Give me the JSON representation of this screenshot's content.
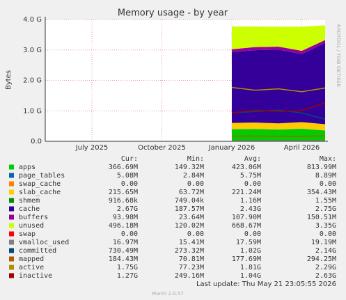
{
  "chart_data": {
    "type": "area",
    "title": "Memory usage - by year",
    "y_label": "Bytes",
    "watermark": "RRDTOOL / TOBI OETIKER",
    "footer": "Last update: Thu May 21 23:05:55 2026",
    "version": "Munin 2.0.57",
    "stat_headers": [
      "Cur:",
      "Min:",
      "Avg:",
      "Max:"
    ],
    "grid": true,
    "x": [
      "2026-01",
      "2026-02",
      "2026-03",
      "2026-04",
      "2026-05"
    ],
    "xlim": [
      "2025-05",
      "2026-05"
    ],
    "xticks": [
      {
        "value": "2025-07",
        "label": "July 2025"
      },
      {
        "value": "2025-10",
        "label": "October 2025"
      },
      {
        "value": "2026-01",
        "label": "January 2026"
      },
      {
        "value": "2026-04",
        "label": "April 2026"
      }
    ],
    "ylim": [
      0,
      4294967296
    ],
    "yticks": [
      {
        "value": 0,
        "label": "0.0"
      },
      {
        "value": 1073741824,
        "label": "1.0 G"
      },
      {
        "value": 2147483648,
        "label": "2.0 G"
      },
      {
        "value": 3221225472,
        "label": "3.0 G"
      },
      {
        "value": 4294967296,
        "label": "4.0 G"
      }
    ],
    "series": [
      {
        "name": "apps",
        "color": "#00cc00",
        "stacked": true,
        "values": [
          420000000,
          430000000,
          410000000,
          440000000,
          380000000
        ],
        "stats": [
          "366.69M",
          "149.32M",
          "423.06M",
          "813.99M"
        ]
      },
      {
        "name": "page_tables",
        "color": "#0066b3",
        "stacked": true,
        "values": [
          6000000,
          6000000,
          5500000,
          6000000,
          5000000
        ],
        "stats": [
          "5.08M",
          "2.84M",
          "5.75M",
          "8.89M"
        ]
      },
      {
        "name": "swap_cache",
        "color": "#ff8000",
        "stacked": true,
        "values": [
          0,
          0,
          0,
          0,
          0
        ],
        "stats": [
          "0.00",
          "0.00",
          "0.00",
          "0.00"
        ]
      },
      {
        "name": "slab_cache",
        "color": "#ffcc00",
        "stacked": true,
        "values": [
          220000000,
          225000000,
          215000000,
          230000000,
          216000000
        ],
        "stats": [
          "215.65M",
          "63.72M",
          "221.24M",
          "354.43M"
        ]
      },
      {
        "name": "shmem",
        "color": "#008f00",
        "stacked": true,
        "values": [
          1200000,
          1150000,
          1100000,
          1200000,
          938000
        ],
        "stats": [
          "916.68k",
          "749.04k",
          "1.16M",
          "1.55M"
        ]
      },
      {
        "name": "cache",
        "color": "#330099",
        "stacked": true,
        "values": [
          2500000000,
          2550000000,
          2600000000,
          2400000000,
          2870000000
        ],
        "stats": [
          "2.67G",
          "187.57M",
          "2.43G",
          "2.75G"
        ]
      },
      {
        "name": "buffers",
        "color": "#990099",
        "stacked": true,
        "values": [
          100000000,
          110000000,
          105000000,
          112000000,
          98000000
        ],
        "stats": [
          "93.98M",
          "23.64M",
          "107.90M",
          "150.51M"
        ]
      },
      {
        "name": "unused",
        "color": "#ccff00",
        "stacked": true,
        "values": [
          800000000,
          720000000,
          700000000,
          850000000,
          520000000
        ],
        "stats": [
          "496.18M",
          "120.02M",
          "668.67M",
          "3.35G"
        ]
      },
      {
        "name": "swap",
        "color": "#ff0000",
        "stacked": true,
        "values": [
          0,
          0,
          0,
          0,
          0
        ],
        "stats": [
          "0.00",
          "0.00",
          "0.00",
          "0.00"
        ]
      },
      {
        "name": "vmalloc_used",
        "color": "#808080",
        "stacked": false,
        "values": [
          17000000,
          17500000,
          17200000,
          18000000,
          17800000
        ],
        "stats": [
          "16.97M",
          "15.41M",
          "17.59M",
          "19.19M"
        ]
      },
      {
        "name": "committed",
        "color": "#00487d",
        "stacked": false,
        "values": [
          1000000000,
          1050000000,
          1100000000,
          1000000000,
          780000000
        ],
        "stats": [
          "730.49M",
          "273.32M",
          "1.02G",
          "2.14G"
        ]
      },
      {
        "name": "mapped",
        "color": "#b35a00",
        "stacked": false,
        "values": [
          180000000,
          185000000,
          178000000,
          175000000,
          193000000
        ],
        "stats": [
          "184.43M",
          "70.81M",
          "177.69M",
          "294.25M"
        ]
      },
      {
        "name": "active",
        "color": "#b38f00",
        "stacked": false,
        "values": [
          1900000000,
          1800000000,
          1850000000,
          1750000000,
          1880000000
        ],
        "stats": [
          "1.75G",
          "77.23M",
          "1.81G",
          "2.29G"
        ]
      },
      {
        "name": "inactive",
        "color": "#a00000",
        "stacked": false,
        "values": [
          1000000000,
          1100000000,
          1050000000,
          1080000000,
          1360000000
        ],
        "stats": [
          "1.27G",
          "249.16M",
          "1.04G",
          "2.63G"
        ]
      }
    ]
  }
}
